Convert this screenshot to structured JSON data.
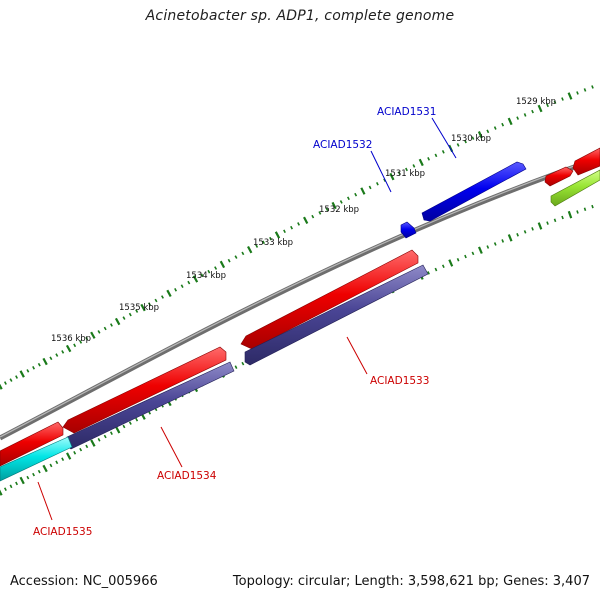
{
  "title": "Acinetobacter sp. ADP1, complete genome",
  "footer": {
    "accession": "Accession: NC_005966",
    "summary": "Topology: circular; Length: 3,598,621 bp; Genes: 3,407"
  },
  "colors": {
    "backbone": "#808080",
    "ruler": "#1a7a1a",
    "label_red": "#cc0000",
    "label_blue": "#0000cc",
    "feature_red": "#ee0000",
    "feature_blue": "#0000ee",
    "feature_slate": "#4a4595",
    "feature_cyan": "#00e5e5",
    "feature_lime": "#99e534"
  },
  "ruler": {
    "ticks": [
      {
        "label": "1529 kbp"
      },
      {
        "label": "1530 kbp"
      },
      {
        "label": "1531 kbp"
      },
      {
        "label": "1532 kbp"
      },
      {
        "label": "1533 kbp"
      },
      {
        "label": "1534 kbp"
      },
      {
        "label": "1535 kbp"
      },
      {
        "label": "1536 kbp"
      }
    ]
  },
  "features": [
    {
      "label": "ACIAD1531",
      "strand": "+",
      "color": "blue"
    },
    {
      "label": "ACIAD1532",
      "strand": "+",
      "color": "blue"
    },
    {
      "label": "ACIAD1533",
      "strand": "-",
      "color": "red"
    },
    {
      "label": "ACIAD1534",
      "strand": "-",
      "color": "red"
    },
    {
      "label": "ACIAD1535",
      "strand": "-",
      "color": "red"
    }
  ]
}
